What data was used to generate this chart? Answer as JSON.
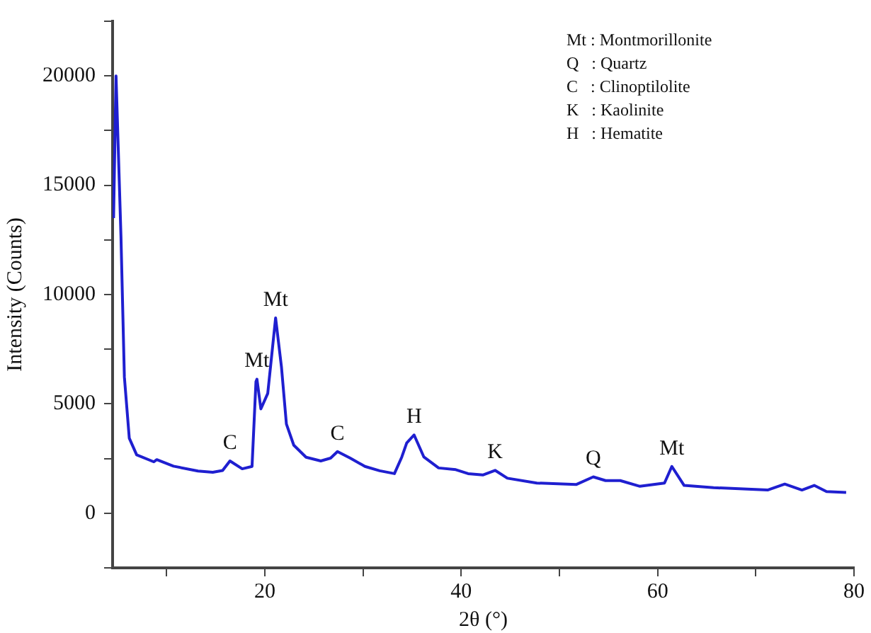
{
  "chart_data": {
    "type": "line",
    "xlabel": "2θ (°)",
    "ylabel": "Intensity (Counts)",
    "xlim": [
      4.5,
      80
    ],
    "xticks": [
      {
        "value": 10,
        "label": null
      },
      20,
      {
        "value": 30,
        "label": null
      },
      40,
      {
        "value": 50,
        "label": null
      },
      60,
      {
        "value": 70,
        "label": null
      },
      80
    ],
    "ylim": [
      -2500,
      22500
    ],
    "yticks": [
      {
        "value": -2500,
        "label": null
      },
      0,
      {
        "value": 2500,
        "label": null
      },
      5000,
      {
        "value": 7500,
        "label": null
      },
      10000,
      {
        "value": 12500,
        "label": null
      },
      15000,
      {
        "value": 17500,
        "label": null
      },
      20000,
      {
        "value": 22500,
        "label": null
      }
    ],
    "grid": false,
    "legend": false,
    "marker": "none",
    "line_style": "solid",
    "series": [
      {
        "color": "#1f1fd0",
        "x": [
          4.6,
          4.85,
          5.35,
          5.7,
          6.2,
          6.95,
          8.7,
          9,
          10.7,
          13.2,
          14.7,
          15.7,
          16.45,
          17.7,
          18.7,
          19.1,
          19.2,
          19.6,
          20.3,
          21.1,
          21.7,
          22.2,
          22.95,
          24.2,
          25.7,
          26.7,
          27.4,
          28.7,
          30.2,
          31.7,
          33.2,
          33.95,
          34.45,
          35.2,
          36.2,
          37.7,
          39.45,
          40.7,
          42.2,
          43.45,
          44.7,
          47.7,
          51.7,
          53.45,
          54.7,
          56.2,
          58.2,
          60.7,
          61.45,
          62.7,
          65.7,
          71.2,
          72.95,
          74.7,
          75.95,
          77.2,
          79.2
        ],
        "values": [
          13500,
          20000,
          12700,
          6230,
          3430,
          2670,
          2350,
          2450,
          2150,
          1930,
          1870,
          1950,
          2390,
          2030,
          2140,
          6020,
          6130,
          4770,
          5480,
          8930,
          6670,
          4080,
          3110,
          2560,
          2390,
          2520,
          2820,
          2520,
          2140,
          1940,
          1810,
          2570,
          3210,
          3580,
          2570,
          2070,
          1990,
          1810,
          1750,
          1960,
          1600,
          1380,
          1310,
          1660,
          1490,
          1490,
          1230,
          1380,
          2140,
          1270,
          1170,
          1060,
          1330,
          1060,
          1270,
          990,
          950
        ]
      }
    ],
    "annotations": [
      "Mt : Montmorillonite",
      "Q   : Quartz",
      "C   : Clinoptilolite",
      "K   : Kaolinite",
      "H   : Hematite",
      {
        "text": "C",
        "x": 16.45,
        "y": 2390
      },
      {
        "text": "Mt",
        "x": 19.2,
        "y": 6130
      },
      {
        "text": "Mt",
        "x": 21.1,
        "y": 8930
      },
      {
        "text": "C",
        "x": 27.4,
        "y": 2820
      },
      {
        "text": "H",
        "x": 35.2,
        "y": 3580
      },
      {
        "text": "K",
        "x": 43.45,
        "y": 1960
      },
      {
        "text": "Q",
        "x": 53.45,
        "y": 1660
      },
      {
        "text": "Mt",
        "x": 61.45,
        "y": 2140
      }
    ]
  }
}
